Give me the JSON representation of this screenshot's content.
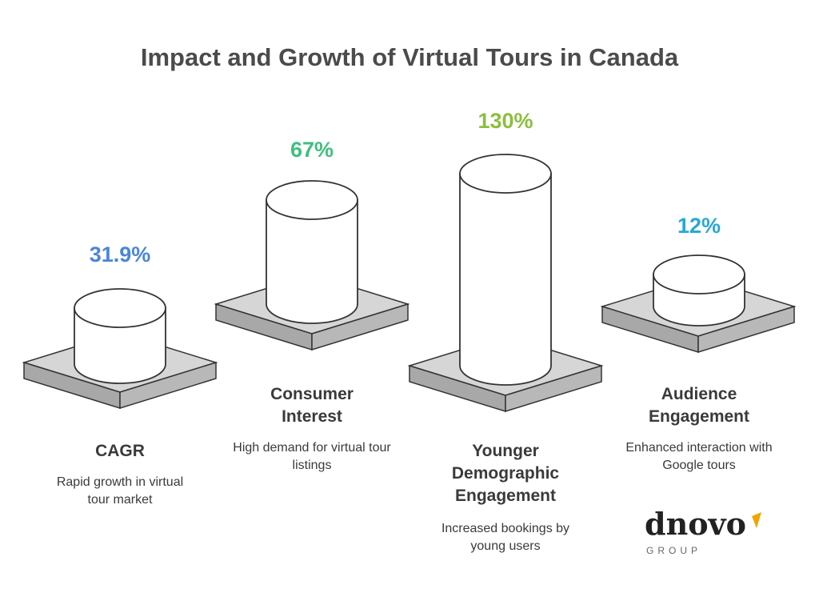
{
  "title": "Impact and Growth of Virtual Tours in Canada",
  "items": [
    {
      "percent": "31.9%",
      "value": 31.9,
      "label": "CAGR",
      "description": "Rapid growth in virtual tour market",
      "color": "#4a86d8"
    },
    {
      "percent": "67%",
      "value": 67,
      "label": "Consumer Interest",
      "description": "High demand for virtual tour listings",
      "color": "#3fbf7f"
    },
    {
      "percent": "130%",
      "value": 130,
      "label": "Younger Demographic Engagement",
      "description": "Increased bookings by young users",
      "color": "#8cbf3f"
    },
    {
      "percent": "12%",
      "value": 12,
      "label": "Audience Engagement",
      "description": "Enhanced interaction with Google tours",
      "color": "#29a8d6"
    }
  ],
  "logo": {
    "word": "dnovo",
    "sub": "GROUP",
    "accent": "#f0a500"
  }
}
